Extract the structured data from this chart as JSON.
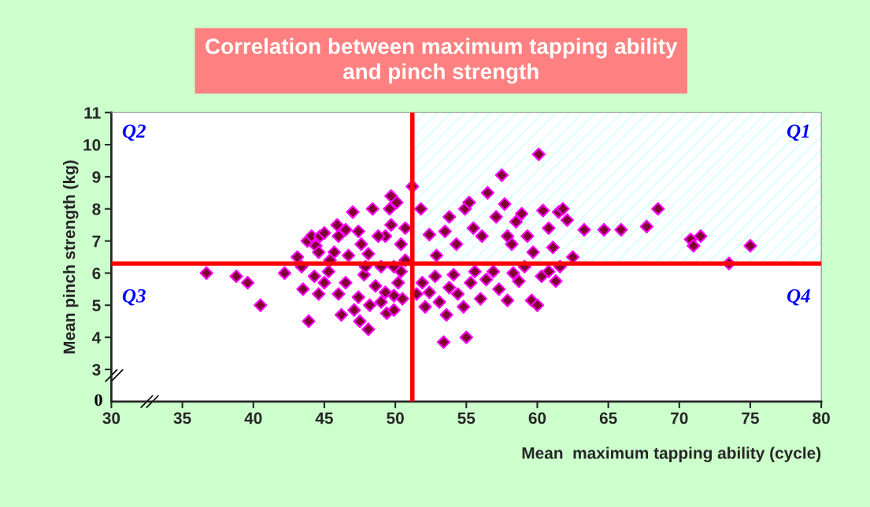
{
  "chart_data": {
    "type": "scatter",
    "title": "Correlation between maximum tapping ability\nand pinch strength",
    "xlabel": "Mean  maximum tapping ability (cycle)",
    "ylabel": "Mean pinch strength (kg)",
    "xlim": [
      30,
      80
    ],
    "xticks": [
      30,
      35,
      40,
      45,
      50,
      55,
      60,
      65,
      70,
      75,
      80
    ],
    "ylim": [
      2,
      11
    ],
    "yticks": [
      3,
      4,
      5,
      6,
      7,
      8,
      9,
      10,
      11
    ],
    "marker": "diamond",
    "grid": false,
    "annotations": [
      "Q1",
      "Q2",
      "Q3",
      "Q4",
      "0"
    ],
    "ref_lines": [
      {
        "axis": "x",
        "value": 51.2,
        "color": "#ff0000"
      },
      {
        "axis": "y",
        "value": 6.3,
        "color": "#ff0000"
      }
    ],
    "bands": [
      {
        "axis": "x",
        "from": 51.2,
        "to": 80,
        "color": "#ccffff"
      }
    ],
    "series": [
      {
        "color": "#800030",
        "x": [
          36.7,
          38.8,
          39.6,
          40.5,
          42.2,
          43.9,
          43.5,
          43.1,
          43.4,
          43.8,
          44.1,
          44.4,
          44.7,
          45.0,
          44.6,
          44.3,
          44.6,
          45.0,
          45.3,
          45.4,
          45.7,
          46.0,
          45.9,
          46.5,
          47.0,
          47.4,
          47.6,
          48.1,
          48.4,
          47.8,
          47.4,
          47.1,
          47.5,
          46.2,
          48.1,
          46.0,
          46.5,
          48.2,
          48.6,
          49.0,
          49.3,
          49.7,
          49.6,
          50.1,
          49.7,
          48.8,
          49.0,
          49.4,
          49.9,
          50.2,
          50.5,
          50.7,
          50.4,
          50.7,
          49.9,
          49.3,
          46.7,
          47.9,
          49.9,
          50.4,
          51.2,
          51.5,
          51.9,
          52.1,
          52.4,
          52.8,
          53.1,
          53.4,
          53.6,
          53.8,
          54.1,
          54.4,
          54.8,
          55.0,
          55.3,
          55.6,
          56.0,
          56.4,
          56.9,
          57.3,
          57.9,
          58.3,
          58.7,
          59.1,
          59.6,
          60.0,
          60.3,
          60.8,
          61.3,
          61.6,
          51.8,
          52.4,
          52.9,
          53.5,
          53.8,
          54.3,
          54.9,
          55.2,
          55.5,
          56.1,
          56.5,
          57.1,
          57.5,
          57.7,
          57.9,
          58.2,
          58.5,
          58.9,
          59.3,
          59.7,
          60.1,
          60.4,
          60.8,
          61.1,
          61.5,
          61.8,
          62.1,
          62.5,
          63.3,
          64.7,
          65.9,
          67.7,
          68.5,
          70.8,
          71.0,
          71.5,
          73.5,
          75.0
        ],
        "values": [
          6.0,
          5.9,
          5.7,
          5.0,
          6.0,
          4.5,
          5.5,
          6.5,
          6.2,
          7.0,
          7.15,
          6.85,
          7.15,
          7.25,
          6.65,
          5.9,
          5.35,
          5.7,
          6.05,
          6.4,
          6.65,
          7.15,
          7.5,
          7.35,
          7.9,
          7.3,
          6.9,
          6.6,
          8.0,
          5.95,
          5.25,
          4.85,
          4.5,
          4.7,
          4.25,
          5.35,
          5.7,
          5.0,
          5.6,
          6.2,
          7.15,
          7.5,
          8.0,
          8.2,
          8.4,
          7.15,
          5.1,
          4.75,
          5.3,
          5.7,
          5.2,
          6.4,
          6.9,
          7.4,
          4.85,
          5.4,
          6.55,
          6.2,
          6.2,
          6.05,
          8.7,
          5.35,
          5.7,
          4.95,
          5.4,
          5.9,
          5.1,
          3.85,
          4.7,
          5.55,
          5.95,
          5.35,
          4.95,
          4.0,
          5.7,
          6.05,
          5.2,
          5.8,
          6.05,
          5.5,
          5.15,
          6.0,
          5.75,
          6.2,
          5.15,
          5.0,
          5.9,
          6.05,
          5.75,
          6.2,
          8.0,
          7.2,
          6.55,
          7.3,
          7.75,
          6.9,
          8.0,
          8.2,
          7.4,
          7.15,
          8.5,
          7.75,
          9.05,
          8.15,
          7.15,
          6.9,
          7.6,
          7.85,
          7.15,
          6.65,
          9.7,
          7.95,
          7.4,
          6.8,
          7.9,
          8.0,
          7.65,
          6.5,
          7.35,
          7.35,
          7.35,
          7.45,
          8.0,
          7.05,
          6.85,
          7.15,
          6.3,
          6.85
        ]
      }
    ]
  }
}
